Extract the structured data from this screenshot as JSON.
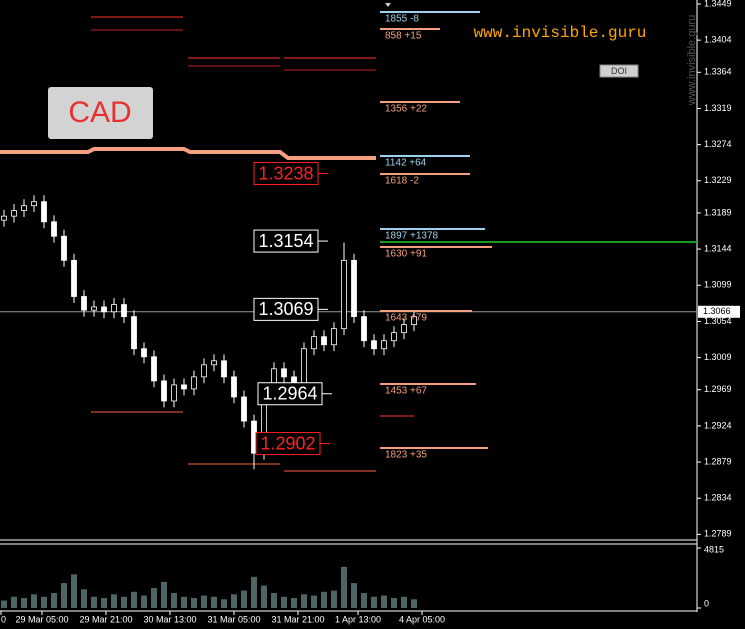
{
  "chart_data": {
    "type": "candlestick",
    "symbol": "CAD",
    "watermark": "www.invisible.guru",
    "button": "DOI",
    "ylim": [
      1.2782,
      1.3449
    ],
    "yticks": [
      1.3449,
      1.3404,
      1.3364,
      1.3319,
      1.3274,
      1.3229,
      1.3189,
      1.3144,
      1.3099,
      1.3054,
      1.3009,
      1.2969,
      1.2924,
      1.2879,
      1.2834,
      1.2789
    ],
    "current_price": 1.3066,
    "x_labels": [
      "0",
      "29 Mar 05:00",
      "29 Mar 21:00",
      "30 Mar 13:00",
      "31 Mar 05:00",
      "31 Mar 21:00",
      "1 Apr 13:00",
      "4 Apr 05:00"
    ],
    "open": [
      1.318,
      1.3185,
      1.3192,
      1.3198,
      1.3203,
      1.3178,
      1.316,
      1.313,
      1.3085,
      1.3068,
      1.3072,
      1.3066,
      1.3075,
      1.306,
      1.302,
      1.301,
      1.298,
      1.2955,
      1.2975,
      1.297,
      1.2985,
      1.3,
      1.3005,
      1.2985,
      1.296,
      1.293,
      1.289,
      1.297,
      1.2995,
      1.2985,
      1.2975,
      1.302,
      1.3035,
      1.3025,
      1.3045,
      1.313,
      1.306,
      1.303,
      1.302,
      1.303,
      1.304,
      1.305
    ],
    "high": [
      1.3193,
      1.32,
      1.3206,
      1.3211,
      1.3211,
      1.3186,
      1.3168,
      1.3138,
      1.3093,
      1.308,
      1.308,
      1.3083,
      1.3083,
      1.3068,
      1.3028,
      1.3018,
      1.2988,
      1.2983,
      1.2983,
      1.2993,
      1.3008,
      1.3013,
      1.3013,
      1.2993,
      1.2968,
      1.2938,
      1.2978,
      1.3003,
      1.3003,
      1.2993,
      1.3028,
      1.3043,
      1.3043,
      1.3053,
      1.3152,
      1.3138,
      1.3068,
      1.3038,
      1.3038,
      1.3048,
      1.3058,
      1.3068
    ],
    "low": [
      1.3172,
      1.3177,
      1.3184,
      1.319,
      1.317,
      1.3152,
      1.3122,
      1.3077,
      1.306,
      1.306,
      1.3058,
      1.3058,
      1.3052,
      1.3012,
      1.3002,
      1.2972,
      1.2947,
      1.2947,
      1.2962,
      1.2962,
      1.2977,
      1.2992,
      1.2977,
      1.2952,
      1.2922,
      1.287,
      1.2882,
      1.2962,
      1.2977,
      1.2967,
      1.2967,
      1.3012,
      1.3017,
      1.3017,
      1.3037,
      1.3052,
      1.3022,
      1.3012,
      1.3012,
      1.3022,
      1.3032,
      1.3042
    ],
    "close": [
      1.3185,
      1.3192,
      1.3198,
      1.3203,
      1.3178,
      1.316,
      1.313,
      1.3085,
      1.3068,
      1.3072,
      1.3066,
      1.3075,
      1.306,
      1.302,
      1.301,
      1.298,
      1.2955,
      1.2975,
      1.297,
      1.2985,
      1.3,
      1.3005,
      1.2985,
      1.296,
      1.293,
      1.289,
      1.297,
      1.2995,
      1.2985,
      1.2975,
      1.302,
      1.3035,
      1.3025,
      1.3045,
      1.313,
      1.306,
      1.303,
      1.302,
      1.303,
      1.304,
      1.305,
      1.306
    ],
    "candle_color": "#ffffff",
    "volume": {
      "values": [
        600,
        900,
        800,
        1100,
        900,
        1200,
        2000,
        2700,
        1500,
        900,
        800,
        1100,
        900,
        1300,
        1000,
        1600,
        2100,
        1200,
        900,
        800,
        1000,
        900,
        700,
        1100,
        1400,
        2500,
        1800,
        1200,
        900,
        800,
        1100,
        1000,
        1300,
        1400,
        3300,
        2000,
        1200,
        900,
        1000,
        800,
        900,
        700
      ],
      "ylim": [
        0,
        4815
      ],
      "yticks": [
        0,
        4815
      ],
      "color": "#4f6464"
    },
    "levels": [
      {
        "value": 1.3238,
        "color": "#ff2020"
      },
      {
        "value": 1.3154,
        "color": "#ffffff"
      },
      {
        "value": 1.3069,
        "color": "#ffffff"
      },
      {
        "value": 1.2964,
        "color": "#ffffff"
      },
      {
        "value": 1.2902,
        "color": "#ff2020"
      }
    ],
    "orders": [
      {
        "label": "1855 -8",
        "color": "#9fd0ef"
      },
      {
        "label": "858 +15",
        "color": "#f4a080"
      },
      {
        "label": "1356 +22",
        "color": "#f4a080"
      },
      {
        "label": "1142 +64",
        "color": "#9fd0ef"
      },
      {
        "label": "1618 -2",
        "color": "#f4a080"
      },
      {
        "label": "1897 +1378",
        "color": "#9fd0ef"
      },
      {
        "label": "1630 +91",
        "color": "#f4a080"
      },
      {
        "label": "1643 +79",
        "color": "#f4a080"
      },
      {
        "label": "1453 +67",
        "color": "#f4a080"
      },
      {
        "label": "1823 +35",
        "color": "#f4a080"
      }
    ]
  }
}
